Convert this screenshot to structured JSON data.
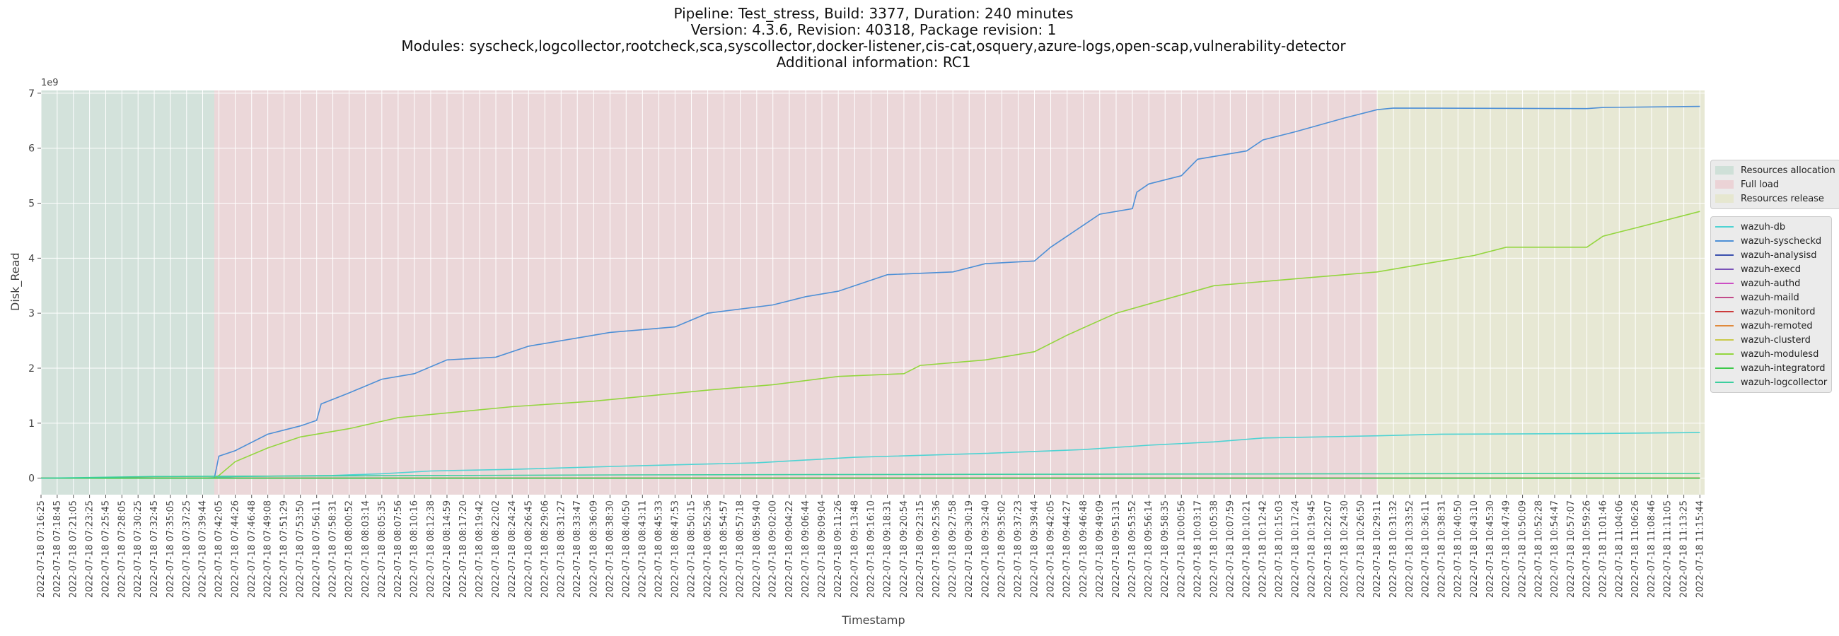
{
  "title_lines": [
    "Pipeline: Test_stress, Build: 3377, Duration: 240 minutes",
    "Version: 4.3.6, Revision: 40318, Package revision: 1",
    "Modules: syscheck,logcollector,rootcheck,sca,syscollector,docker-listener,cis-cat,osquery,azure-logs,open-scap,vulnerability-detector",
    "Additional information: RC1"
  ],
  "chart_data": {
    "type": "line",
    "xlabel": "Timestamp",
    "ylabel": "Disk_Read",
    "y_scale_label": "1e9",
    "ylim": [
      -300000000,
      7050000000
    ],
    "y_ticks": [
      0,
      1000000000,
      2000000000,
      3000000000,
      4000000000,
      5000000000,
      6000000000,
      7000000000
    ],
    "y_tick_labels": [
      "0",
      "1",
      "2",
      "3",
      "4",
      "5",
      "6",
      "7"
    ],
    "x_range": [
      "2022-07-18 07:16:25",
      "2022-07-18 11:16:25"
    ],
    "x_tick_labels": [
      "2022-07-18 07:16:25",
      "2022-07-18 07:18:45",
      "2022-07-18 07:21:05",
      "2022-07-18 07:23:25",
      "2022-07-18 07:25:45",
      "2022-07-18 07:28:05",
      "2022-07-18 07:30:25",
      "2022-07-18 07:32:45",
      "2022-07-18 07:35:05",
      "2022-07-18 07:37:25",
      "2022-07-18 07:39:44",
      "2022-07-18 07:42:05",
      "2022-07-18 07:44:26",
      "2022-07-18 07:46:48",
      "2022-07-18 07:49:08",
      "2022-07-18 07:51:29",
      "2022-07-18 07:53:50",
      "2022-07-18 07:56:11",
      "2022-07-18 07:58:31",
      "2022-07-18 08:00:52",
      "2022-07-18 08:03:14",
      "2022-07-18 08:05:35",
      "2022-07-18 08:07:56",
      "2022-07-18 08:10:16",
      "2022-07-18 08:12:38",
      "2022-07-18 08:14:59",
      "2022-07-18 08:17:20",
      "2022-07-18 08:19:42",
      "2022-07-18 08:22:02",
      "2022-07-18 08:24:24",
      "2022-07-18 08:26:45",
      "2022-07-18 08:29:06",
      "2022-07-18 08:31:27",
      "2022-07-18 08:33:47",
      "2022-07-18 08:36:09",
      "2022-07-18 08:38:30",
      "2022-07-18 08:40:50",
      "2022-07-18 08:43:11",
      "2022-07-18 08:45:33",
      "2022-07-18 08:47:53",
      "2022-07-18 08:50:15",
      "2022-07-18 08:52:36",
      "2022-07-18 08:54:57",
      "2022-07-18 08:57:18",
      "2022-07-18 08:59:40",
      "2022-07-18 09:02:00",
      "2022-07-18 09:04:22",
      "2022-07-18 09:06:44",
      "2022-07-18 09:09:04",
      "2022-07-18 09:11:26",
      "2022-07-18 09:13:48",
      "2022-07-18 09:16:10",
      "2022-07-18 09:18:31",
      "2022-07-18 09:20:54",
      "2022-07-18 09:23:15",
      "2022-07-18 09:25:36",
      "2022-07-18 09:27:58",
      "2022-07-18 09:30:19",
      "2022-07-18 09:32:40",
      "2022-07-18 09:35:02",
      "2022-07-18 09:37:23",
      "2022-07-18 09:39:44",
      "2022-07-18 09:42:05",
      "2022-07-18 09:44:27",
      "2022-07-18 09:46:48",
      "2022-07-18 09:49:09",
      "2022-07-18 09:51:31",
      "2022-07-18 09:53:52",
      "2022-07-18 09:56:14",
      "2022-07-18 09:58:35",
      "2022-07-18 10:00:56",
      "2022-07-18 10:03:17",
      "2022-07-18 10:05:38",
      "2022-07-18 10:07:59",
      "2022-07-18 10:10:21",
      "2022-07-18 10:12:42",
      "2022-07-18 10:15:03",
      "2022-07-18 10:17:24",
      "2022-07-18 10:19:45",
      "2022-07-18 10:22:07",
      "2022-07-18 10:24:30",
      "2022-07-18 10:26:50",
      "2022-07-18 10:29:11",
      "2022-07-18 10:31:32",
      "2022-07-18 10:33:52",
      "2022-07-18 10:36:11",
      "2022-07-18 10:38:31",
      "2022-07-18 10:40:50",
      "2022-07-18 10:43:10",
      "2022-07-18 10:45:30",
      "2022-07-18 10:47:49",
      "2022-07-18 10:50:09",
      "2022-07-18 10:52:28",
      "2022-07-18 10:54:47",
      "2022-07-18 10:57:07",
      "2022-07-18 10:59:26",
      "2022-07-18 11:01:46",
      "2022-07-18 11:04:06",
      "2022-07-18 11:06:26",
      "2022-07-18 11:08:46",
      "2022-07-18 11:11:05",
      "2022-07-18 11:13:25",
      "2022-07-18 11:15:44"
    ],
    "grid": true,
    "legend_position": "right",
    "phases": [
      {
        "name": "Resources allocation",
        "start": "2022-07-18 07:16:25",
        "end": "2022-07-18 07:41:25",
        "color": "#cfe0d8"
      },
      {
        "name": "Full load",
        "start": "2022-07-18 07:41:25",
        "end": "2022-07-18 10:29:11",
        "color": "#ebd3d6"
      },
      {
        "name": "Resources release",
        "start": "2022-07-18 10:29:11",
        "end": "2022-07-18 11:16:25",
        "color": "#e6e7d0"
      }
    ],
    "series": [
      {
        "name": "wazuh-db",
        "color": "#4fd3d3",
        "points": [
          [
            "2022-07-18 07:16:25",
            0
          ],
          [
            "2022-07-18 07:39:44",
            0
          ],
          [
            "2022-07-18 07:44:26",
            30000000
          ],
          [
            "2022-07-18 07:58:31",
            50000000
          ],
          [
            "2022-07-18 08:05:35",
            80000000
          ],
          [
            "2022-07-18 08:12:38",
            130000000
          ],
          [
            "2022-07-18 08:24:24",
            160000000
          ],
          [
            "2022-07-18 08:40:50",
            220000000
          ],
          [
            "2022-07-18 08:59:40",
            280000000
          ],
          [
            "2022-07-18 09:13:48",
            380000000
          ],
          [
            "2022-07-18 09:32:40",
            450000000
          ],
          [
            "2022-07-18 09:46:48",
            520000000
          ],
          [
            "2022-07-18 09:56:14",
            600000000
          ],
          [
            "2022-07-18 10:05:38",
            660000000
          ],
          [
            "2022-07-18 10:12:42",
            730000000
          ],
          [
            "2022-07-18 10:29:11",
            770000000
          ],
          [
            "2022-07-18 10:38:31",
            800000000
          ],
          [
            "2022-07-18 10:59:26",
            810000000
          ],
          [
            "2022-07-18 11:15:44",
            830000000
          ]
        ]
      },
      {
        "name": "wazuh-syscheckd",
        "color": "#4d8fd6",
        "points": [
          [
            "2022-07-18 07:16:25",
            0
          ],
          [
            "2022-07-18 07:41:25",
            0
          ],
          [
            "2022-07-18 07:42:05",
            400000000
          ],
          [
            "2022-07-18 07:44:26",
            500000000
          ],
          [
            "2022-07-18 07:49:08",
            800000000
          ],
          [
            "2022-07-18 07:53:50",
            950000000
          ],
          [
            "2022-07-18 07:56:11",
            1050000000
          ],
          [
            "2022-07-18 07:56:50",
            1350000000
          ],
          [
            "2022-07-18 08:00:52",
            1550000000
          ],
          [
            "2022-07-18 08:05:35",
            1800000000
          ],
          [
            "2022-07-18 08:10:16",
            1900000000
          ],
          [
            "2022-07-18 08:14:59",
            2150000000
          ],
          [
            "2022-07-18 08:22:02",
            2200000000
          ],
          [
            "2022-07-18 08:26:45",
            2400000000
          ],
          [
            "2022-07-18 08:38:30",
            2650000000
          ],
          [
            "2022-07-18 08:47:53",
            2750000000
          ],
          [
            "2022-07-18 08:52:36",
            3000000000
          ],
          [
            "2022-07-18 09:02:00",
            3150000000
          ],
          [
            "2022-07-18 09:06:44",
            3300000000
          ],
          [
            "2022-07-18 09:11:26",
            3400000000
          ],
          [
            "2022-07-18 09:16:10",
            3600000000
          ],
          [
            "2022-07-18 09:18:31",
            3700000000
          ],
          [
            "2022-07-18 09:27:58",
            3750000000
          ],
          [
            "2022-07-18 09:32:40",
            3900000000
          ],
          [
            "2022-07-18 09:39:44",
            3950000000
          ],
          [
            "2022-07-18 09:42:05",
            4200000000
          ],
          [
            "2022-07-18 09:44:27",
            4400000000
          ],
          [
            "2022-07-18 09:49:09",
            4800000000
          ],
          [
            "2022-07-18 09:53:52",
            4900000000
          ],
          [
            "2022-07-18 09:54:30",
            5200000000
          ],
          [
            "2022-07-18 09:56:14",
            5350000000
          ],
          [
            "2022-07-18 10:00:56",
            5500000000
          ],
          [
            "2022-07-18 10:03:17",
            5800000000
          ],
          [
            "2022-07-18 10:10:21",
            5950000000
          ],
          [
            "2022-07-18 10:12:42",
            6150000000
          ],
          [
            "2022-07-18 10:17:24",
            6300000000
          ],
          [
            "2022-07-18 10:24:30",
            6550000000
          ],
          [
            "2022-07-18 10:29:11",
            6700000000
          ],
          [
            "2022-07-18 10:31:32",
            6730000000
          ],
          [
            "2022-07-18 10:59:26",
            6720000000
          ],
          [
            "2022-07-18 11:01:46",
            6740000000
          ],
          [
            "2022-07-18 11:15:44",
            6760000000
          ]
        ]
      },
      {
        "name": "wazuh-analysisd",
        "color": "#3a4fae",
        "points": [
          [
            "2022-07-18 07:16:25",
            0
          ],
          [
            "2022-07-18 11:15:44",
            2000000
          ]
        ]
      },
      {
        "name": "wazuh-execd",
        "color": "#7a52b8",
        "points": [
          [
            "2022-07-18 07:16:25",
            0
          ],
          [
            "2022-07-18 11:15:44",
            0
          ]
        ]
      },
      {
        "name": "wazuh-authd",
        "color": "#cc4fc4",
        "points": [
          [
            "2022-07-18 07:16:25",
            0
          ],
          [
            "2022-07-18 11:15:44",
            0
          ]
        ]
      },
      {
        "name": "wazuh-maild",
        "color": "#c24b8a",
        "points": [
          [
            "2022-07-18 07:16:25",
            0
          ],
          [
            "2022-07-18 11:15:44",
            0
          ]
        ]
      },
      {
        "name": "wazuh-monitord",
        "color": "#cc3b3b",
        "points": [
          [
            "2022-07-18 07:16:25",
            0
          ],
          [
            "2022-07-18 11:15:44",
            0
          ]
        ]
      },
      {
        "name": "wazuh-remoted",
        "color": "#e08a3c",
        "points": [
          [
            "2022-07-18 07:16:25",
            0
          ],
          [
            "2022-07-18 11:15:44",
            1000000
          ]
        ]
      },
      {
        "name": "wazuh-clusterd",
        "color": "#c9c94a",
        "points": [
          [
            "2022-07-18 07:16:25",
            0
          ],
          [
            "2022-07-18 11:15:44",
            0
          ]
        ]
      },
      {
        "name": "wazuh-modulesd",
        "color": "#93d63e",
        "points": [
          [
            "2022-07-18 07:16:25",
            0
          ],
          [
            "2022-07-18 07:41:25",
            0
          ],
          [
            "2022-07-18 07:42:05",
            50000000
          ],
          [
            "2022-07-18 07:44:26",
            300000000
          ],
          [
            "2022-07-18 07:49:08",
            550000000
          ],
          [
            "2022-07-18 07:53:50",
            750000000
          ],
          [
            "2022-07-18 08:00:52",
            900000000
          ],
          [
            "2022-07-18 08:07:56",
            1100000000
          ],
          [
            "2022-07-18 08:24:24",
            1300000000
          ],
          [
            "2022-07-18 08:36:09",
            1400000000
          ],
          [
            "2022-07-18 08:52:36",
            1600000000
          ],
          [
            "2022-07-18 09:02:00",
            1700000000
          ],
          [
            "2022-07-18 09:11:26",
            1850000000
          ],
          [
            "2022-07-18 09:20:54",
            1900000000
          ],
          [
            "2022-07-18 09:23:15",
            2050000000
          ],
          [
            "2022-07-18 09:32:40",
            2150000000
          ],
          [
            "2022-07-18 09:39:44",
            2300000000
          ],
          [
            "2022-07-18 09:44:27",
            2600000000
          ],
          [
            "2022-07-18 09:51:31",
            3000000000
          ],
          [
            "2022-07-18 09:58:35",
            3250000000
          ],
          [
            "2022-07-18 10:05:38",
            3500000000
          ],
          [
            "2022-07-18 10:19:45",
            3650000000
          ],
          [
            "2022-07-18 10:29:11",
            3750000000
          ],
          [
            "2022-07-18 10:36:11",
            3900000000
          ],
          [
            "2022-07-18 10:43:10",
            4050000000
          ],
          [
            "2022-07-18 10:47:49",
            4200000000
          ],
          [
            "2022-07-18 10:59:26",
            4200000000
          ],
          [
            "2022-07-18 11:01:46",
            4400000000
          ],
          [
            "2022-07-18 11:06:26",
            4550000000
          ],
          [
            "2022-07-18 11:15:44",
            4850000000
          ]
        ]
      },
      {
        "name": "wazuh-integratord",
        "color": "#3dc94a",
        "points": [
          [
            "2022-07-18 07:16:25",
            0
          ],
          [
            "2022-07-18 11:15:44",
            0
          ]
        ]
      },
      {
        "name": "wazuh-logcollector",
        "color": "#3ccf9f",
        "points": [
          [
            "2022-07-18 07:16:25",
            0
          ],
          [
            "2022-07-18 07:32:45",
            30000000
          ],
          [
            "2022-07-18 08:40:50",
            60000000
          ],
          [
            "2022-07-18 10:29:11",
            80000000
          ],
          [
            "2022-07-18 11:15:44",
            85000000
          ]
        ]
      }
    ]
  }
}
